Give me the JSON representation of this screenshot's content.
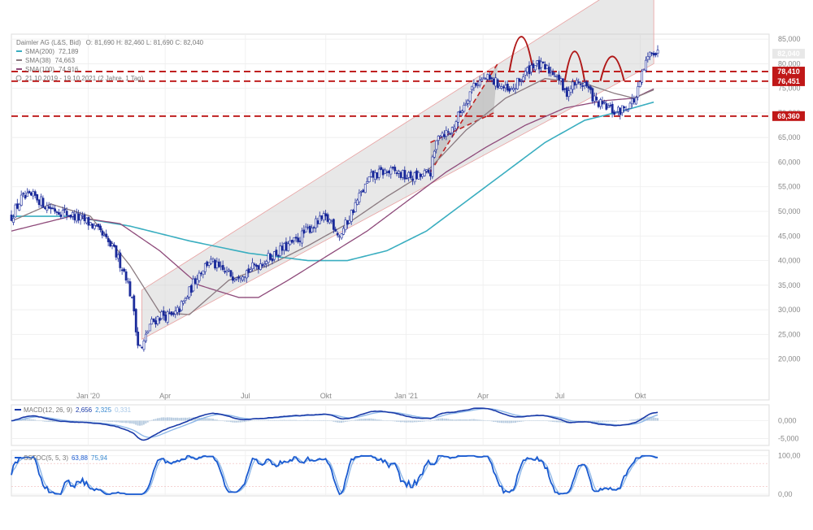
{
  "header": {
    "instrument": "Daimler AG (L&S, Bid)",
    "ohlc": "O: 81,690  H: 82,460  L: 81,690  C: 82,040",
    "sma200": {
      "label": "SMA(200)",
      "value": "72,189",
      "color": "#3aaec0"
    },
    "sma38": {
      "label": "SMA(38)",
      "value": "74,663",
      "color": "#8a7a80"
    },
    "sma100": {
      "label": "SMA(100)",
      "value": "74,916",
      "color": "#8e4a7a"
    },
    "range": "21.10.2019 - 19.10.2021  (2 Jahre, 1 Tag)"
  },
  "tags": {
    "last": "82,040",
    "r1": "78,410",
    "r2": "76,451",
    "s1": "69,360"
  },
  "macd": {
    "label": "MACD(12, 26, 9)",
    "v1": "2,656",
    "v2": "2,325",
    "v3": "0,331"
  },
  "sstoc": {
    "label": "SSTOC(5, 5, 3)",
    "v1": "63,88",
    "v2": "75,94"
  },
  "chart_data": {
    "type": "candlestick",
    "x_labels": [
      "Jan '20",
      "Apr",
      "Jul",
      "Okt",
      "Jan '21",
      "Apr",
      "Jul",
      "Okt"
    ],
    "y_ticks": [
      "20,000",
      "25,000",
      "30,000",
      "35,000",
      "40,000",
      "45,000",
      "50,000",
      "55,000",
      "60,000",
      "65,000",
      "70,000",
      "75,000",
      "80,000",
      "85,000"
    ],
    "ylim": [
      20,
      86
    ],
    "price_path": [
      [
        0,
        49
      ],
      [
        5,
        52.5
      ],
      [
        12,
        53
      ],
      [
        18,
        51
      ],
      [
        25,
        50
      ],
      [
        32,
        49
      ],
      [
        40,
        47.5
      ],
      [
        46,
        45
      ],
      [
        52,
        42
      ],
      [
        58,
        37
      ],
      [
        62,
        30
      ],
      [
        64,
        23
      ],
      [
        66,
        22
      ],
      [
        70,
        27
      ],
      [
        76,
        29
      ],
      [
        82,
        28.5
      ],
      [
        88,
        32
      ],
      [
        94,
        37
      ],
      [
        100,
        40
      ],
      [
        106,
        38
      ],
      [
        112,
        37
      ],
      [
        120,
        38
      ],
      [
        128,
        40
      ],
      [
        136,
        42
      ],
      [
        144,
        44
      ],
      [
        152,
        47
      ],
      [
        158,
        48.5
      ],
      [
        162,
        48
      ],
      [
        166,
        45
      ],
      [
        170,
        48
      ],
      [
        176,
        53
      ],
      [
        182,
        57
      ],
      [
        188,
        58
      ],
      [
        194,
        58
      ],
      [
        200,
        57
      ],
      [
        206,
        57
      ],
      [
        212,
        58
      ],
      [
        216,
        66
      ],
      [
        222,
        66
      ],
      [
        228,
        71
      ],
      [
        234,
        76
      ],
      [
        240,
        77
      ],
      [
        246,
        76
      ],
      [
        252,
        74
      ],
      [
        258,
        77
      ],
      [
        264,
        80
      ],
      [
        270,
        79
      ],
      [
        276,
        78
      ],
      [
        280,
        74
      ],
      [
        285,
        76
      ],
      [
        290,
        76
      ],
      [
        296,
        72
      ],
      [
        302,
        71
      ],
      [
        306,
        70
      ],
      [
        310,
        71
      ],
      [
        316,
        73
      ],
      [
        320,
        79
      ],
      [
        324,
        83
      ],
      [
        327,
        82
      ]
    ],
    "sma200_path": [
      [
        0,
        49
      ],
      [
        30,
        49
      ],
      [
        60,
        47
      ],
      [
        90,
        44
      ],
      [
        120,
        41.5
      ],
      [
        150,
        40
      ],
      [
        170,
        40
      ],
      [
        190,
        42
      ],
      [
        210,
        46
      ],
      [
        230,
        52
      ],
      [
        250,
        58
      ],
      [
        270,
        64
      ],
      [
        290,
        68.5
      ],
      [
        310,
        70.5
      ],
      [
        325,
        72.2
      ]
    ],
    "sma100_path": [
      [
        0,
        46
      ],
      [
        30,
        49
      ],
      [
        55,
        47.5
      ],
      [
        75,
        42
      ],
      [
        95,
        35
      ],
      [
        115,
        32.5
      ],
      [
        125,
        32.5
      ],
      [
        140,
        36
      ],
      [
        160,
        41
      ],
      [
        180,
        46
      ],
      [
        200,
        52
      ],
      [
        220,
        58
      ],
      [
        240,
        63
      ],
      [
        260,
        67.5
      ],
      [
        280,
        71
      ],
      [
        300,
        72.5
      ],
      [
        315,
        73
      ],
      [
        325,
        74.9
      ]
    ],
    "sma38_path": [
      [
        0,
        48
      ],
      [
        20,
        51.5
      ],
      [
        40,
        49
      ],
      [
        60,
        39
      ],
      [
        75,
        29.5
      ],
      [
        90,
        29
      ],
      [
        110,
        36
      ],
      [
        130,
        39
      ],
      [
        150,
        43
      ],
      [
        170,
        47.5
      ],
      [
        190,
        53
      ],
      [
        210,
        58
      ],
      [
        230,
        66.5
      ],
      [
        250,
        73
      ],
      [
        270,
        77
      ],
      [
        290,
        76
      ],
      [
        305,
        74
      ],
      [
        315,
        73
      ],
      [
        325,
        74.7
      ]
    ],
    "levels": [
      78.41,
      76.451,
      69.36
    ],
    "last_close": 82.04,
    "channel": {
      "lower": [
        [
          66,
          24
        ],
        [
          325,
          80
        ]
      ],
      "upper": [
        [
          66,
          34
        ],
        [
          325,
          100
        ]
      ]
    },
    "pattern_arcs": [
      [
        252,
        264,
        78.5,
        7
      ],
      [
        280,
        290,
        76.5,
        6
      ],
      [
        298,
        310,
        76.5,
        5
      ]
    ],
    "pattern_wedge": [
      [
        212,
        58
      ],
      [
        246,
        80
      ],
      [
        212,
        64
      ],
      [
        244,
        70
      ]
    ],
    "macd": {
      "ticks": [
        "0,000",
        "-5,000"
      ],
      "ylim": [
        -6.5,
        4
      ]
    },
    "sstoc": {
      "ticks": [
        "100,00",
        "0,00"
      ],
      "ylim": [
        0,
        110
      ]
    }
  }
}
